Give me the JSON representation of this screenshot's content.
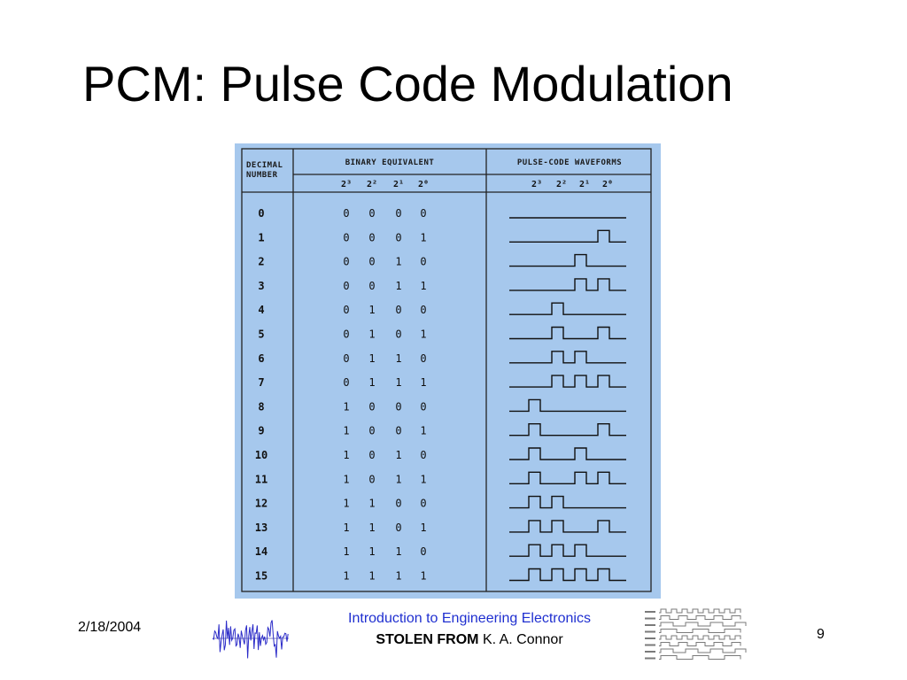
{
  "slide": {
    "title": "PCM: Pulse Code Modulation",
    "footer": {
      "date": "2/18/2004",
      "course": "Introduction to Engineering Electronics",
      "credit_bold": "STOLEN FROM",
      "credit_name": "K. A. Connor",
      "page": "9"
    }
  },
  "figure": {
    "headers": {
      "decimal_line1": "DECIMAL",
      "decimal_line2": "NUMBER",
      "binary": "BINARY EQUIVALENT",
      "waveforms": "PULSE-CODE WAVEFORMS"
    },
    "powers": [
      "2³",
      "2²",
      "2¹",
      "2⁰"
    ],
    "rows": [
      {
        "decimal": "0",
        "bits": [
          "0",
          "0",
          "0",
          "0"
        ]
      },
      {
        "decimal": "1",
        "bits": [
          "0",
          "0",
          "0",
          "1"
        ]
      },
      {
        "decimal": "2",
        "bits": [
          "0",
          "0",
          "1",
          "0"
        ]
      },
      {
        "decimal": "3",
        "bits": [
          "0",
          "0",
          "1",
          "1"
        ]
      },
      {
        "decimal": "4",
        "bits": [
          "0",
          "1",
          "0",
          "0"
        ]
      },
      {
        "decimal": "5",
        "bits": [
          "0",
          "1",
          "0",
          "1"
        ]
      },
      {
        "decimal": "6",
        "bits": [
          "0",
          "1",
          "1",
          "0"
        ]
      },
      {
        "decimal": "7",
        "bits": [
          "0",
          "1",
          "1",
          "1"
        ]
      },
      {
        "decimal": "8",
        "bits": [
          "1",
          "0",
          "0",
          "0"
        ]
      },
      {
        "decimal": "9",
        "bits": [
          "1",
          "0",
          "0",
          "1"
        ]
      },
      {
        "decimal": "10",
        "bits": [
          "1",
          "0",
          "1",
          "0"
        ]
      },
      {
        "decimal": "11",
        "bits": [
          "1",
          "0",
          "1",
          "1"
        ]
      },
      {
        "decimal": "12",
        "bits": [
          "1",
          "1",
          "0",
          "0"
        ]
      },
      {
        "decimal": "13",
        "bits": [
          "1",
          "1",
          "0",
          "1"
        ]
      },
      {
        "decimal": "14",
        "bits": [
          "1",
          "1",
          "1",
          "0"
        ]
      },
      {
        "decimal": "15",
        "bits": [
          "1",
          "1",
          "1",
          "1"
        ]
      }
    ],
    "colors": {
      "background": "#a6c8ed",
      "ink": "#111111"
    }
  }
}
